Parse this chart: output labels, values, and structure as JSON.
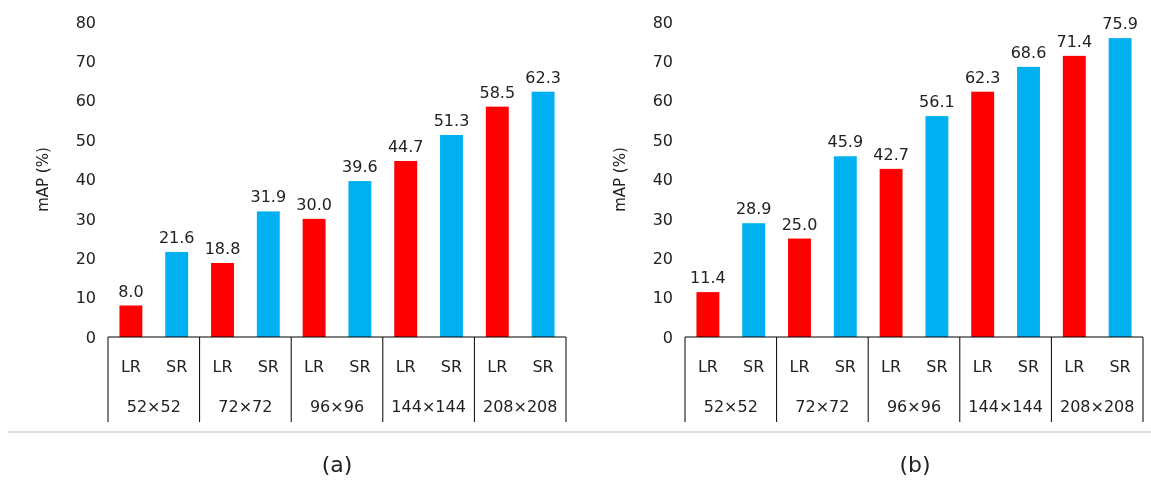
{
  "chart_data": [
    {
      "type": "bar",
      "title": "(a)",
      "ylabel": "mAP (%)",
      "categories": [
        "LR",
        "SR",
        "LR",
        "SR",
        "LR",
        "SR",
        "LR",
        "SR",
        "LR",
        "SR"
      ],
      "annotations": [
        "52×52",
        "72×72",
        "96×96",
        "144×144",
        "208×208"
      ],
      "values": [
        8.0,
        21.6,
        18.8,
        31.9,
        30.0,
        39.6,
        44.7,
        51.3,
        58.5,
        62.3
      ],
      "colors": [
        "#ff0000",
        "#00b0f0",
        "#ff0000",
        "#00b0f0",
        "#ff0000",
        "#00b0f0",
        "#ff0000",
        "#00b0f0",
        "#ff0000",
        "#00b0f0"
      ],
      "ylim": [
        0,
        80
      ],
      "yticks": [
        0,
        10,
        20,
        30,
        40,
        50,
        60,
        70,
        80
      ],
      "grid": false,
      "value_labels": [
        "8.0",
        "21.6",
        "18.8",
        "31.9",
        "30.0",
        "39.6",
        "44.7",
        "51.3",
        "58.5",
        "62.3"
      ]
    },
    {
      "type": "bar",
      "title": "(b)",
      "ylabel": "mAP (%)",
      "categories": [
        "LR",
        "SR",
        "LR",
        "SR",
        "LR",
        "SR",
        "LR",
        "SR",
        "LR",
        "SR"
      ],
      "annotations": [
        "52×52",
        "72×72",
        "96×96",
        "144×144",
        "208×208"
      ],
      "values": [
        11.4,
        28.9,
        25.0,
        45.9,
        42.7,
        56.1,
        62.3,
        68.6,
        71.4,
        75.9
      ],
      "colors": [
        "#ff0000",
        "#00b0f0",
        "#ff0000",
        "#00b0f0",
        "#ff0000",
        "#00b0f0",
        "#ff0000",
        "#00b0f0",
        "#ff0000",
        "#00b0f0"
      ],
      "ylim": [
        0,
        80
      ],
      "yticks": [
        0,
        10,
        20,
        30,
        40,
        50,
        60,
        70,
        80
      ],
      "grid": false,
      "value_labels": [
        "11.4",
        "28.9",
        "25.0",
        "45.9",
        "42.7",
        "56.1",
        "62.3",
        "68.6",
        "71.4",
        "75.9"
      ]
    }
  ]
}
